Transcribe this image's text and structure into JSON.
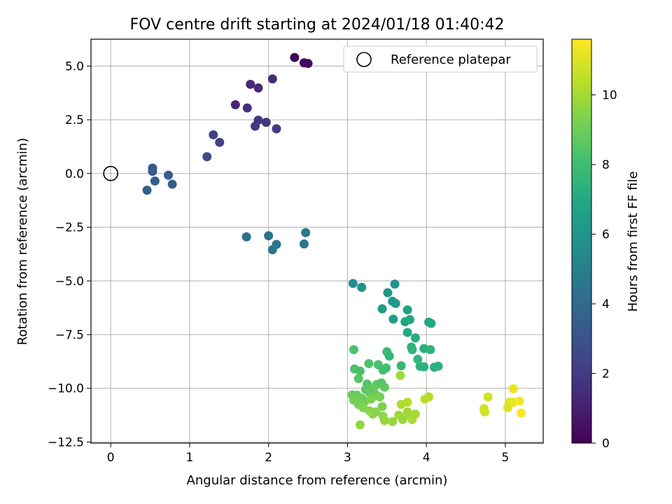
{
  "chart_data": {
    "type": "scatter",
    "title": "FOV centre drift starting at 2024/01/18 01:40:42",
    "xlabel": "Angular distance from reference (arcmin)",
    "ylabel": "Rotation from reference (arcmin)",
    "xlim": [
      -0.25,
      5.48
    ],
    "ylim": [
      -12.55,
      6.25
    ],
    "xticks": [
      0,
      1,
      2,
      3,
      4,
      5
    ],
    "xtick_labels": [
      "0",
      "1",
      "2",
      "3",
      "4",
      "5"
    ],
    "yticks": [
      5.0,
      2.5,
      0.0,
      -2.5,
      -5.0,
      -7.5,
      -10.0,
      -12.5
    ],
    "ytick_labels": [
      "5.0",
      "2.5",
      "0.0",
      "−2.5",
      "−5.0",
      "−7.5",
      "−10.0",
      "−12.5"
    ],
    "grid": true,
    "legend": {
      "position": "top-right",
      "entries": [
        "Reference platepar"
      ]
    },
    "reference_point": {
      "x": 0.0,
      "y": 0.0
    },
    "colorbar": {
      "label": "Hours from first FF file",
      "colormap": "viridis",
      "range": [
        0,
        11.6
      ],
      "ticks": [
        0,
        2,
        4,
        6,
        8,
        10
      ],
      "tick_labels": [
        "0",
        "2",
        "4",
        "6",
        "8",
        "10"
      ]
    },
    "points": [
      {
        "x": 2.33,
        "y": 5.4,
        "c": 0.1
      },
      {
        "x": 2.45,
        "y": 5.15,
        "c": 0.3
      },
      {
        "x": 2.5,
        "y": 5.12,
        "c": 0.4
      },
      {
        "x": 1.77,
        "y": 4.15,
        "c": 1.3
      },
      {
        "x": 1.87,
        "y": 3.98,
        "c": 1.4
      },
      {
        "x": 2.05,
        "y": 4.4,
        "c": 1.5
      },
      {
        "x": 1.58,
        "y": 3.2,
        "c": 1.2
      },
      {
        "x": 1.73,
        "y": 3.05,
        "c": 1.6
      },
      {
        "x": 1.87,
        "y": 2.48,
        "c": 1.7
      },
      {
        "x": 1.97,
        "y": 2.38,
        "c": 1.8
      },
      {
        "x": 1.83,
        "y": 2.2,
        "c": 1.9
      },
      {
        "x": 2.1,
        "y": 2.08,
        "c": 2.0
      },
      {
        "x": 1.3,
        "y": 1.8,
        "c": 2.2
      },
      {
        "x": 1.38,
        "y": 1.45,
        "c": 2.3
      },
      {
        "x": 1.22,
        "y": 0.78,
        "c": 2.6
      },
      {
        "x": 0.53,
        "y": 0.25,
        "c": 3.2
      },
      {
        "x": 0.53,
        "y": 0.1,
        "c": 3.3
      },
      {
        "x": 0.73,
        "y": -0.08,
        "c": 3.4
      },
      {
        "x": 0.56,
        "y": -0.35,
        "c": 3.5
      },
      {
        "x": 0.78,
        "y": -0.5,
        "c": 3.5
      },
      {
        "x": 0.46,
        "y": -0.78,
        "c": 3.6
      },
      {
        "x": 1.72,
        "y": -2.95,
        "c": 4.3
      },
      {
        "x": 2.0,
        "y": -2.9,
        "c": 4.4
      },
      {
        "x": 2.1,
        "y": -3.3,
        "c": 4.5
      },
      {
        "x": 2.05,
        "y": -3.55,
        "c": 4.5
      },
      {
        "x": 2.47,
        "y": -2.75,
        "c": 4.6
      },
      {
        "x": 2.45,
        "y": -3.28,
        "c": 4.6
      },
      {
        "x": 3.07,
        "y": -5.12,
        "c": 5.6
      },
      {
        "x": 3.18,
        "y": -5.3,
        "c": 5.8
      },
      {
        "x": 3.6,
        "y": -5.15,
        "c": 6.0
      },
      {
        "x": 3.51,
        "y": -5.55,
        "c": 6.1
      },
      {
        "x": 3.57,
        "y": -5.95,
        "c": 6.2
      },
      {
        "x": 3.61,
        "y": -6.05,
        "c": 6.3
      },
      {
        "x": 3.44,
        "y": -6.3,
        "c": 6.2
      },
      {
        "x": 3.76,
        "y": -6.35,
        "c": 6.6
      },
      {
        "x": 3.58,
        "y": -6.78,
        "c": 6.5
      },
      {
        "x": 3.73,
        "y": -6.9,
        "c": 6.8
      },
      {
        "x": 3.79,
        "y": -6.8,
        "c": 6.9
      },
      {
        "x": 4.03,
        "y": -6.92,
        "c": 6.8
      },
      {
        "x": 4.06,
        "y": -6.98,
        "c": 7.0
      },
      {
        "x": 3.76,
        "y": -7.4,
        "c": 7.0
      },
      {
        "x": 3.86,
        "y": -7.65,
        "c": 7.2
      },
      {
        "x": 3.81,
        "y": -8.08,
        "c": 7.4
      },
      {
        "x": 3.82,
        "y": -8.2,
        "c": 7.5
      },
      {
        "x": 3.97,
        "y": -8.15,
        "c": 7.3
      },
      {
        "x": 4.05,
        "y": -8.2,
        "c": 7.5
      },
      {
        "x": 3.89,
        "y": -8.65,
        "c": 7.6
      },
      {
        "x": 3.53,
        "y": -8.5,
        "c": 7.6
      },
      {
        "x": 3.5,
        "y": -8.3,
        "c": 7.8
      },
      {
        "x": 3.92,
        "y": -8.98,
        "c": 7.6
      },
      {
        "x": 3.97,
        "y": -9.0,
        "c": 7.4
      },
      {
        "x": 4.1,
        "y": -9.02,
        "c": 7.3
      },
      {
        "x": 4.15,
        "y": -8.97,
        "c": 7.4
      },
      {
        "x": 3.68,
        "y": -8.95,
        "c": 7.7
      },
      {
        "x": 3.08,
        "y": -8.2,
        "c": 8.3
      },
      {
        "x": 3.27,
        "y": -8.85,
        "c": 8.3
      },
      {
        "x": 3.39,
        "y": -8.9,
        "c": 8.2
      },
      {
        "x": 3.49,
        "y": -9.05,
        "c": 8.0
      },
      {
        "x": 3.45,
        "y": -9.15,
        "c": 8.1
      },
      {
        "x": 3.09,
        "y": -9.1,
        "c": 8.3
      },
      {
        "x": 3.16,
        "y": -9.2,
        "c": 8.2
      },
      {
        "x": 3.14,
        "y": -9.55,
        "c": 8.5
      },
      {
        "x": 3.25,
        "y": -9.8,
        "c": 8.4
      },
      {
        "x": 3.37,
        "y": -9.82,
        "c": 8.6
      },
      {
        "x": 3.43,
        "y": -9.75,
        "c": 8.5
      },
      {
        "x": 3.47,
        "y": -9.95,
        "c": 8.7
      },
      {
        "x": 3.33,
        "y": -10.0,
        "c": 8.8
      },
      {
        "x": 3.23,
        "y": -10.05,
        "c": 8.6
      },
      {
        "x": 3.28,
        "y": -10.2,
        "c": 8.7
      },
      {
        "x": 3.06,
        "y": -10.3,
        "c": 9.0
      },
      {
        "x": 3.12,
        "y": -10.32,
        "c": 8.9
      },
      {
        "x": 3.18,
        "y": -10.45,
        "c": 9.0
      },
      {
        "x": 3.08,
        "y": -10.55,
        "c": 9.1
      },
      {
        "x": 3.22,
        "y": -10.6,
        "c": 9.0
      },
      {
        "x": 3.36,
        "y": -10.3,
        "c": 8.9
      },
      {
        "x": 3.3,
        "y": -10.5,
        "c": 9.3
      },
      {
        "x": 3.41,
        "y": -10.4,
        "c": 9.2
      },
      {
        "x": 3.14,
        "y": -10.75,
        "c": 9.2
      },
      {
        "x": 3.2,
        "y": -10.9,
        "c": 9.4
      },
      {
        "x": 3.44,
        "y": -10.85,
        "c": 9.3
      },
      {
        "x": 3.28,
        "y": -11.05,
        "c": 9.5
      },
      {
        "x": 3.32,
        "y": -11.2,
        "c": 9.6
      },
      {
        "x": 3.36,
        "y": -11.1,
        "c": 9.5
      },
      {
        "x": 3.45,
        "y": -11.3,
        "c": 9.6
      },
      {
        "x": 3.47,
        "y": -11.5,
        "c": 9.7
      },
      {
        "x": 3.57,
        "y": -11.55,
        "c": 9.8
      },
      {
        "x": 3.65,
        "y": -11.25,
        "c": 9.9
      },
      {
        "x": 3.7,
        "y": -11.45,
        "c": 9.8
      },
      {
        "x": 3.76,
        "y": -11.1,
        "c": 9.9
      },
      {
        "x": 3.8,
        "y": -11.3,
        "c": 10.0
      },
      {
        "x": 3.82,
        "y": -11.45,
        "c": 10.1
      },
      {
        "x": 3.86,
        "y": -11.2,
        "c": 10.0
      },
      {
        "x": 3.68,
        "y": -10.75,
        "c": 10.2
      },
      {
        "x": 3.76,
        "y": -10.65,
        "c": 10.3
      },
      {
        "x": 3.98,
        "y": -10.5,
        "c": 10.4
      },
      {
        "x": 4.03,
        "y": -10.4,
        "c": 10.3
      },
      {
        "x": 3.16,
        "y": -11.7,
        "c": 9.7
      },
      {
        "x": 3.67,
        "y": -9.4,
        "c": 10.0
      },
      {
        "x": 4.73,
        "y": -10.95,
        "c": 10.7
      },
      {
        "x": 4.74,
        "y": -11.1,
        "c": 10.8
      },
      {
        "x": 4.78,
        "y": -10.4,
        "c": 10.8
      },
      {
        "x": 5.03,
        "y": -10.9,
        "c": 11.0
      },
      {
        "x": 5.05,
        "y": -10.65,
        "c": 11.0
      },
      {
        "x": 5.1,
        "y": -10.65,
        "c": 11.2
      },
      {
        "x": 5.1,
        "y": -10.02,
        "c": 11.3
      },
      {
        "x": 5.18,
        "y": -10.6,
        "c": 11.4
      },
      {
        "x": 5.2,
        "y": -11.15,
        "c": 11.5
      }
    ]
  }
}
